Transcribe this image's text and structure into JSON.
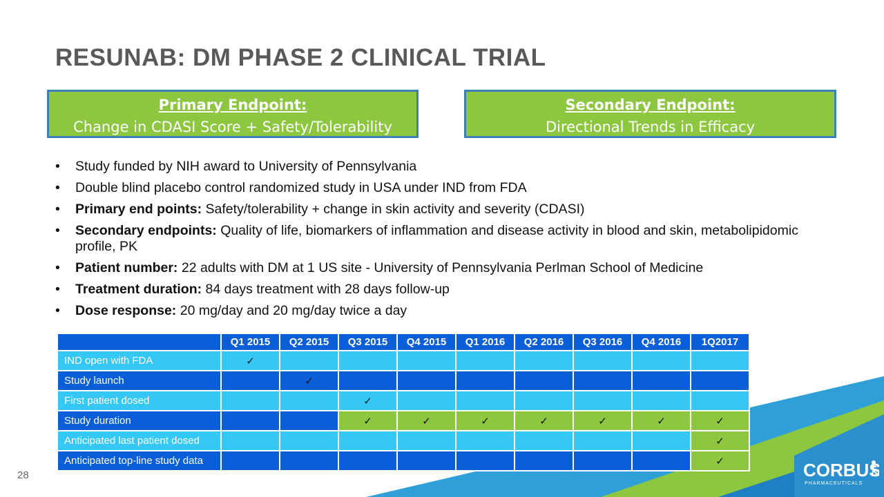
{
  "title": "RESUNAB: DM PHASE 2 CLINICAL TRIAL",
  "primary_endpoint": {
    "heading": "Primary Endpoint:",
    "text": "Change in CDASI Score + Safety/Tolerability"
  },
  "secondary_endpoint": {
    "heading": "Secondary Endpoint:",
    "text": "Directional Trends in Efficacy"
  },
  "bullets": [
    {
      "bold": "",
      "text": "Study funded by NIH award to University of Pennsylvania"
    },
    {
      "bold": "",
      "text": "Double blind placebo control randomized study in USA under IND from FDA"
    },
    {
      "bold": "Primary end points:",
      "text": " Safety/tolerability + change in skin activity and severity (CDASI)"
    },
    {
      "bold": "Secondary endpoints:",
      "text": " Quality of life, biomarkers of inflammation and disease activity in blood and skin, metabolipidomic profile, PK"
    },
    {
      "bold": "Patient number:",
      "text": " 22 adults with DM at 1 US site - University of Pennsylvania Perlman School of Medicine"
    },
    {
      "bold": "Treatment duration:",
      "text": " 84 days treatment with 28 days follow-up"
    },
    {
      "bold": "Dose response:",
      "text": " 20 mg/day and 20 mg/day twice a day"
    }
  ],
  "bullet_char": "•",
  "timeline": {
    "columns": [
      "Q1 2015",
      "Q2 2015",
      "Q3 2015",
      "Q4 2015",
      "Q1 2016",
      "Q2 2016",
      "Q3 2016",
      "Q4 2016",
      "1Q2017"
    ],
    "check_char": "✓",
    "rows": [
      {
        "label": "IND open with FDA",
        "checks": [
          true,
          false,
          false,
          false,
          false,
          false,
          false,
          false,
          false
        ]
      },
      {
        "label": "Study launch",
        "checks": [
          false,
          true,
          false,
          false,
          false,
          false,
          false,
          false,
          false
        ]
      },
      {
        "label": "First patient dosed",
        "checks": [
          false,
          false,
          true,
          false,
          false,
          false,
          false,
          false,
          false
        ]
      },
      {
        "label": "Study duration",
        "checks": [
          false,
          false,
          true,
          true,
          true,
          true,
          true,
          true,
          true
        ]
      },
      {
        "label": "Anticipated last patient dosed",
        "checks": [
          false,
          false,
          false,
          false,
          false,
          false,
          false,
          false,
          true
        ]
      },
      {
        "label": "Anticipated top-line study data",
        "checks": [
          false,
          false,
          false,
          false,
          false,
          false,
          false,
          false,
          true
        ]
      }
    ]
  },
  "page_number": "28",
  "logo": {
    "name": "CORBUS",
    "tagline": "PHARMACEUTICALS"
  },
  "colors": {
    "title": "#58595b",
    "endpoint_fill": "#8dc63f",
    "endpoint_border": "#3f7fb8",
    "table_dark": "#0a5fd8",
    "table_light": "#35c8f5",
    "check_fill": "#8dc63f"
  }
}
